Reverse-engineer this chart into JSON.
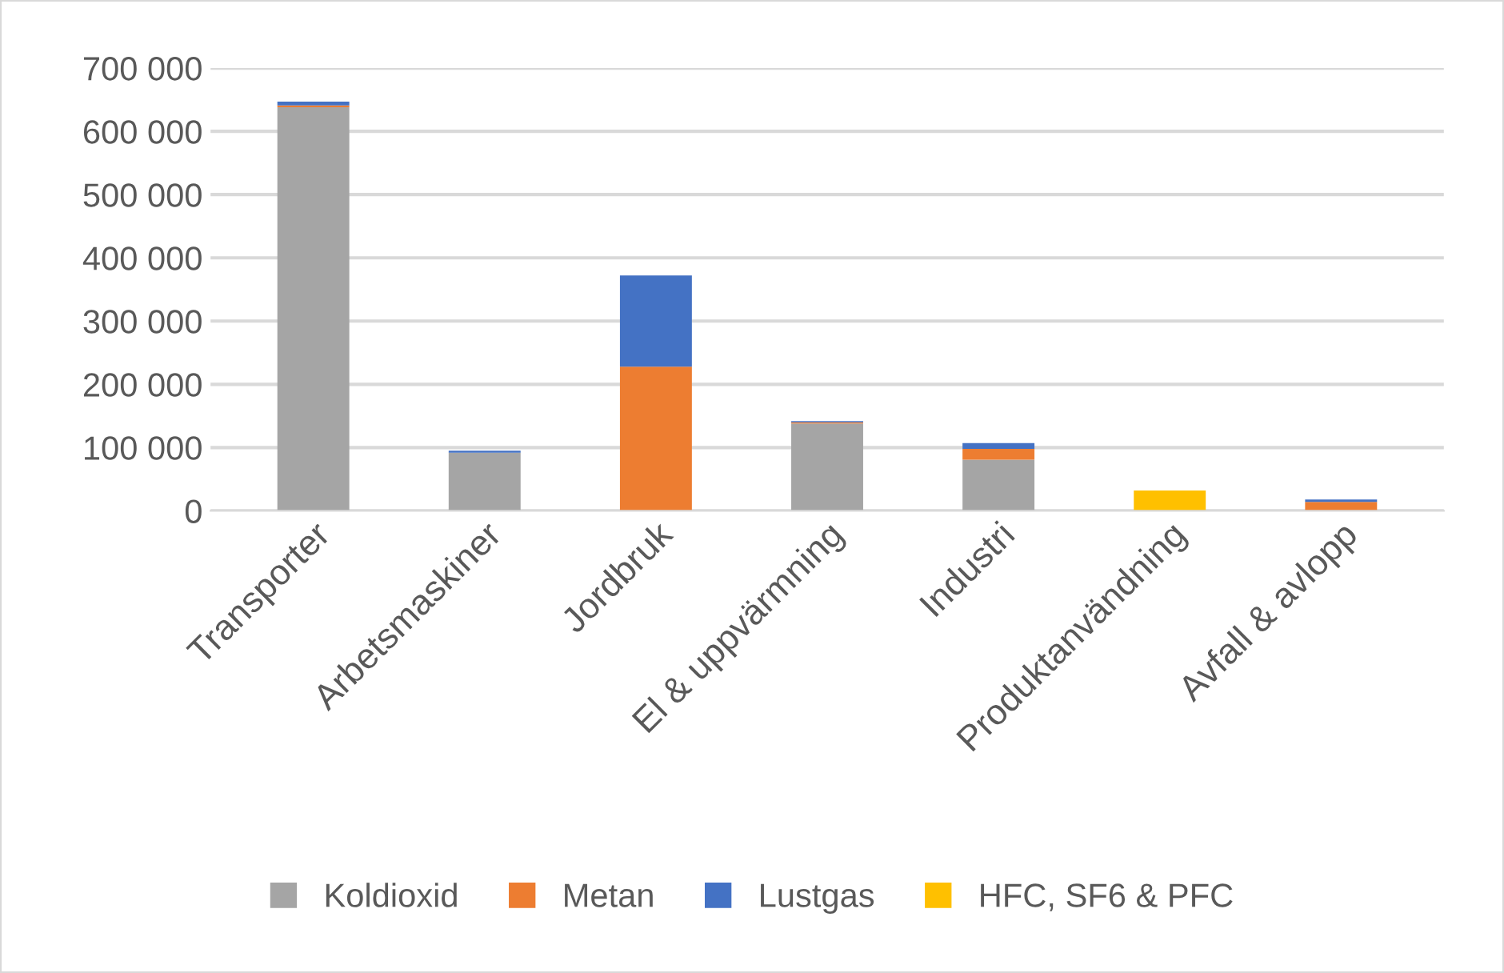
{
  "chart_data": {
    "type": "bar",
    "stacked": true,
    "categories": [
      "Transporter",
      "Arbetsmaskiner",
      "Jordbruk",
      "El & uppvärmning",
      "Industri",
      "Produktanvändning",
      "Avfall & avlopp"
    ],
    "series": [
      {
        "name": "Koldioxid",
        "color": "#a5a5a5",
        "values": [
          638000,
          92000,
          null,
          138000,
          81000,
          null,
          null
        ]
      },
      {
        "name": "Metan",
        "color": "#ed7d31",
        "values": [
          3000,
          null,
          228000,
          2000,
          17000,
          null,
          14000
        ]
      },
      {
        "name": "Lustgas",
        "color": "#4472c4",
        "values": [
          6000,
          3000,
          144000,
          2000,
          9000,
          null,
          4000
        ]
      },
      {
        "name": "HFC, SF6 & PFC",
        "color": "#ffc000",
        "values": [
          null,
          null,
          null,
          null,
          null,
          32000,
          null
        ]
      }
    ],
    "ylim": [
      0,
      700000
    ],
    "yticks": [
      {
        "value": 0,
        "label": "0"
      },
      {
        "value": 100000,
        "label": "100 000"
      },
      {
        "value": 200000,
        "label": "200 000"
      },
      {
        "value": 300000,
        "label": "300 000"
      },
      {
        "value": 400000,
        "label": "400 000"
      },
      {
        "value": 500000,
        "label": "500 000"
      },
      {
        "value": 600000,
        "label": "600 000"
      },
      {
        "value": 700000,
        "label": "700 000"
      }
    ],
    "grid": "y",
    "legend": "bottom"
  }
}
